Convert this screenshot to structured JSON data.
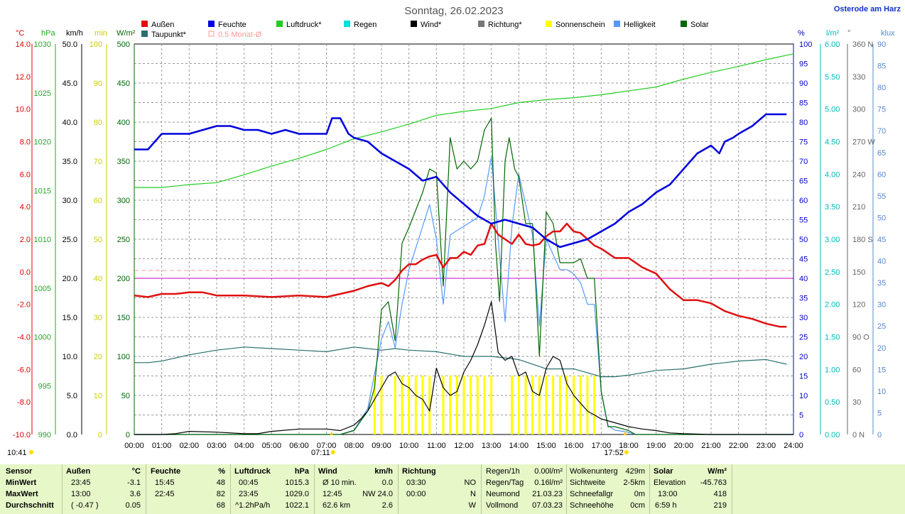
{
  "title": "Sonntag, 26.02.2023",
  "location": "Osterode am Harz",
  "legend": [
    {
      "label": "Außen",
      "color": "#e01010"
    },
    {
      "label": "Feuchte",
      "color": "#0000dd"
    },
    {
      "label": "Luftdruck*",
      "color": "#22cc22"
    },
    {
      "label": "Regen",
      "color": "#00dddd"
    },
    {
      "label": "Wind*",
      "color": "#000000"
    },
    {
      "label": "Richtung*",
      "color": "#777777"
    },
    {
      "label": "Sonnenschein",
      "color": "#ffff00"
    },
    {
      "label": "Helligkeit",
      "color": "#5599ff"
    },
    {
      "label": "Solar",
      "color": "#006600"
    },
    {
      "label": "Taupunkt*",
      "color": "#2a6f6f"
    },
    {
      "label": "0.5 Monat-Ø",
      "color": "#ff9999"
    }
  ],
  "axes": {
    "temp": {
      "unit": "°C",
      "ticks": [
        "14.0",
        "12.0",
        "10.0",
        "8.0",
        "6.0",
        "4.0",
        "2.0",
        "0.0",
        "-2.0",
        "-4.0",
        "-6.0",
        "-8.0",
        "-10.0"
      ],
      "color": "#dd0000"
    },
    "press": {
      "unit": "hPa",
      "ticks": [
        "1030",
        "1025",
        "1020",
        "1015",
        "1010",
        "1005",
        "1000",
        "995",
        "990"
      ],
      "color": "#22aa22"
    },
    "wind": {
      "unit": "km/h",
      "ticks": [
        "50.0",
        "45.0",
        "40.0",
        "35.0",
        "30.0",
        "25.0",
        "20.0",
        "15.0",
        "10.0",
        "5.0",
        "0.0"
      ],
      "color": "#000000"
    },
    "sunmin": {
      "unit": "min",
      "ticks": [
        "100",
        "90",
        "80",
        "70",
        "60",
        "50",
        "40",
        "30",
        "20",
        "10",
        "0"
      ],
      "color": "#cccc00"
    },
    "solar": {
      "unit": "W/m²",
      "ticks": [
        "500",
        "450",
        "400",
        "350",
        "300",
        "250",
        "200",
        "150",
        "100",
        "50",
        "0"
      ],
      "color": "#006600"
    },
    "hum": {
      "unit": "%",
      "ticks": [
        "100",
        "95",
        "90",
        "85",
        "80",
        "75",
        "70",
        "65",
        "60",
        "55",
        "50",
        "45",
        "40",
        "35",
        "30",
        "25",
        "20",
        "15",
        "10",
        "5",
        "0"
      ],
      "color": "#0000cc"
    },
    "rain": {
      "unit": "l/m²",
      "ticks": [
        "6.00",
        "5.50",
        "5.00",
        "4.50",
        "4.00",
        "3.50",
        "3.00",
        "2.50",
        "2.00",
        "1.50",
        "1.00",
        "0.50",
        "0.00"
      ],
      "color": "#00bbbb"
    },
    "dir": {
      "unit": "°",
      "ticks": [
        "360 N",
        "330",
        "300",
        "270 W",
        "240",
        "210",
        "180 S",
        "150",
        "120",
        "90 O",
        "60",
        "30",
        "0 N"
      ],
      "color": "#666666"
    },
    "lux": {
      "unit": "klux",
      "ticks": [
        "90",
        "85",
        "80",
        "75",
        "70",
        "65",
        "60",
        "55",
        "50",
        "45",
        "40",
        "35",
        "30",
        "25",
        "20",
        "15",
        "10",
        "5",
        "0"
      ],
      "color": "#5588cc"
    }
  },
  "x_ticks": [
    "00:00",
    "01:00",
    "02:00",
    "03:00",
    "04:00",
    "05:00",
    "06:00",
    "07:00",
    "08:00",
    "09:00",
    "10:00",
    "11:00",
    "12:00",
    "13:00",
    "14:00",
    "15:00",
    "16:00",
    "17:00",
    "18:00",
    "19:00",
    "20:00",
    "21:00",
    "22:00",
    "23:00",
    "24:00"
  ],
  "markers": {
    "moon": "10:41",
    "sunrise": "07:11",
    "sunset": "17:52"
  },
  "chart_data": {
    "type": "line",
    "x_unit": "hour",
    "xlim": [
      0,
      24
    ],
    "series": [
      {
        "name": "Außen",
        "unit": "°C",
        "ylim": [
          -10,
          15
        ],
        "color": "#e01010",
        "x": [
          0,
          0.5,
          1,
          1.5,
          2,
          2.5,
          3,
          4,
          5,
          6,
          7,
          7.5,
          8,
          8.5,
          9,
          9.25,
          9.5,
          9.75,
          10,
          10.25,
          10.5,
          10.75,
          11,
          11.25,
          11.5,
          11.75,
          12,
          12.25,
          12.5,
          12.75,
          13,
          13.25,
          13.5,
          13.75,
          14,
          14.25,
          14.5,
          14.75,
          15,
          15.25,
          15.5,
          15.75,
          16,
          16.25,
          16.5,
          16.75,
          17,
          17.5,
          18,
          18.5,
          19,
          19.5,
          20,
          20.5,
          21,
          21.5,
          22,
          22.5,
          23,
          23.5,
          23.75
        ],
        "y": [
          -1.1,
          -1.2,
          -1.0,
          -1.0,
          -0.9,
          -0.9,
          -1.1,
          -1.1,
          -1.2,
          -1.1,
          -1.2,
          -1.0,
          -0.8,
          -0.5,
          -0.3,
          -0.5,
          -0.1,
          0.5,
          0.9,
          0.9,
          1.2,
          1.4,
          1.5,
          0.7,
          1.3,
          1.3,
          1.7,
          1.5,
          2.1,
          2.2,
          3.5,
          2.8,
          2.5,
          2.2,
          2.8,
          2.2,
          2.1,
          2.2,
          2.7,
          3.0,
          3.0,
          3.5,
          3.0,
          2.9,
          2.5,
          2.1,
          1.9,
          1.3,
          1.3,
          0.7,
          0.3,
          -0.7,
          -1.4,
          -1.4,
          -1.6,
          -2.1,
          -2.4,
          -2.6,
          -2.9,
          -3.1,
          -3.1
        ]
      },
      {
        "name": "Feuchte",
        "unit": "%",
        "ylim": [
          0,
          100
        ],
        "color": "#0000dd",
        "x": [
          0,
          0.5,
          1,
          1.5,
          2,
          2.5,
          3,
          3.5,
          4,
          4.5,
          5,
          5.5,
          6,
          6.5,
          7,
          7.2,
          7.5,
          7.8,
          8,
          8.5,
          9,
          9.5,
          10,
          10.5,
          11,
          11.5,
          12,
          12.5,
          13,
          13.5,
          14,
          14.5,
          15,
          15.5,
          16,
          16.5,
          17,
          17.5,
          18,
          18.5,
          19,
          19.5,
          20,
          20.5,
          21,
          21.3,
          21.5,
          21.8,
          22,
          22.5,
          23,
          23.5,
          23.75
        ],
        "y": [
          73,
          73,
          77,
          77,
          77,
          78,
          79,
          79,
          78,
          78,
          77,
          78,
          77,
          77,
          77,
          81,
          81,
          77,
          76,
          75,
          72,
          70,
          68,
          65,
          66,
          62,
          59,
          56,
          54,
          55,
          54,
          53,
          50,
          48,
          49,
          50,
          52,
          54,
          57,
          59,
          62,
          64,
          68,
          72,
          74,
          72,
          75,
          76,
          77,
          79,
          82,
          82,
          82
        ]
      },
      {
        "name": "Luftdruck*",
        "unit": "hPa",
        "ylim": [
          990,
          1030
        ],
        "color": "#22cc22",
        "x": [
          0,
          1,
          2,
          3,
          4,
          5,
          6,
          7,
          8,
          9,
          10,
          11,
          12,
          13,
          14,
          15,
          16,
          17,
          18,
          19,
          20,
          21,
          22,
          23,
          24
        ],
        "y": [
          1015.3,
          1015.3,
          1015.6,
          1015.8,
          1016.6,
          1017.5,
          1018.3,
          1019.2,
          1020.3,
          1021.0,
          1021.8,
          1022.7,
          1023.1,
          1023.4,
          1024.0,
          1024.3,
          1024.5,
          1024.8,
          1025.2,
          1025.6,
          1026.4,
          1027.1,
          1027.7,
          1028.4,
          1029.0
        ]
      },
      {
        "name": "Taupunkt*",
        "unit": "°C",
        "ylim": [
          -10,
          15
        ],
        "color": "#2a6f6f",
        "x": [
          0,
          0.5,
          1,
          2,
          3,
          4,
          5,
          6,
          7,
          8,
          9,
          9.5,
          10,
          11,
          12,
          13,
          14,
          15,
          16,
          17,
          17.5,
          18,
          19,
          20,
          21,
          22,
          23,
          23.75
        ],
        "y": [
          -5.4,
          -5.4,
          -5.3,
          -4.9,
          -4.6,
          -4.4,
          -4.5,
          -4.6,
          -4.7,
          -4.4,
          -4.6,
          -4.5,
          -4.6,
          -4.7,
          -5.0,
          -5.0,
          -5.2,
          -5.8,
          -5.8,
          -6.3,
          -6.3,
          -6.2,
          -5.9,
          -5.8,
          -5.5,
          -5.3,
          -5.2,
          -5.5
        ]
      },
      {
        "name": "Wind*",
        "unit": "km/h",
        "ylim": [
          0,
          50
        ],
        "color": "#000000",
        "x": [
          0,
          1,
          1.5,
          2,
          3,
          4,
          4.5,
          5,
          6,
          7,
          7.5,
          8,
          8.25,
          8.5,
          8.75,
          9,
          9.25,
          9.5,
          9.75,
          10,
          10.25,
          10.5,
          10.75,
          11,
          11.25,
          11.5,
          11.75,
          12,
          12.25,
          12.5,
          12.75,
          13,
          13.25,
          13.5,
          13.75,
          14,
          14.25,
          14.5,
          14.75,
          15,
          15.25,
          15.5,
          15.75,
          16,
          16.25,
          16.5,
          16.75,
          17,
          17.5,
          18,
          18.5,
          19,
          19.5,
          20,
          21,
          22,
          23,
          24
        ],
        "y": [
          0,
          0,
          0.1,
          0.4,
          0.3,
          0.1,
          0.1,
          0.4,
          0.7,
          0.7,
          0.5,
          1.2,
          2.0,
          3.0,
          4.5,
          6.0,
          7.5,
          8.0,
          6.5,
          6.0,
          5.0,
          4.5,
          3.0,
          8.5,
          6.0,
          5.0,
          5.5,
          8.0,
          9.5,
          11.5,
          14.0,
          17.0,
          10.5,
          9.5,
          10.0,
          7.5,
          8.0,
          5.5,
          5.0,
          8.5,
          10.0,
          9.5,
          6.5,
          5.0,
          4.0,
          3.0,
          2.5,
          2.0,
          1.5,
          1.0,
          0.7,
          0.5,
          0.2,
          0.1,
          0,
          0,
          0,
          0
        ]
      },
      {
        "name": "Solar",
        "unit": "W/m²",
        "ylim": [
          0,
          500
        ],
        "color": "#006600",
        "x": [
          0,
          7.5,
          8,
          8.5,
          8.75,
          9,
          9.25,
          9.5,
          9.75,
          10,
          10.5,
          10.75,
          11,
          11.25,
          11.5,
          11.75,
          12,
          12.25,
          12.5,
          12.75,
          13,
          13.15,
          13.3,
          13.5,
          13.65,
          13.85,
          14,
          14.25,
          14.5,
          14.75,
          15,
          15.25,
          15.5,
          15.75,
          16,
          16.25,
          16.5,
          16.75,
          17,
          17.25,
          17.5,
          18,
          18.25,
          24
        ],
        "y": [
          0,
          0,
          5,
          30,
          60,
          160,
          170,
          120,
          245,
          265,
          310,
          340,
          335,
          190,
          380,
          340,
          350,
          340,
          350,
          390,
          405,
          245,
          170,
          350,
          380,
          340,
          330,
          270,
          270,
          100,
          285,
          270,
          220,
          220,
          220,
          225,
          200,
          200,
          55,
          10,
          10,
          5,
          0,
          0
        ]
      },
      {
        "name": "Helligkeit",
        "unit": "klux",
        "ylim": [
          0,
          90
        ],
        "color": "#5599ff",
        "x": [
          0,
          7.5,
          8,
          8.5,
          9,
          9.25,
          9.5,
          9.75,
          10,
          10.5,
          10.75,
          11,
          11.25,
          11.5,
          12,
          12.5,
          12.75,
          13,
          13.5,
          13.75,
          14,
          14.5,
          14.75,
          15,
          15.5,
          15.75,
          16,
          16.25,
          16.5,
          16.75,
          17,
          17.25,
          17.5,
          18,
          18.25,
          24
        ],
        "y": [
          0,
          0,
          1,
          6,
          22,
          26,
          20,
          30,
          38,
          48,
          53,
          45,
          30,
          46,
          48,
          50,
          55,
          64,
          26,
          48,
          60,
          46,
          25,
          45,
          38,
          38,
          37,
          35,
          30,
          30,
          10,
          2,
          1,
          0.5,
          0,
          0
        ]
      },
      {
        "name": "Sonnenschein",
        "unit": "min",
        "ylim": [
          0,
          100
        ],
        "color": "#ffff00",
        "x": [
          8.75,
          9.0,
          9.5,
          9.75,
          10.0,
          10.25,
          10.5,
          10.75,
          11.25,
          11.5,
          11.75,
          12.0,
          12.25,
          12.5,
          12.75,
          13.0,
          13.75,
          14.0,
          14.25,
          14.5,
          14.75,
          15.0,
          15.25,
          15.5,
          15.75,
          16.0,
          16.25,
          16.5,
          16.75
        ],
        "y": [
          15,
          15,
          15,
          15,
          15,
          15,
          15,
          15,
          15,
          15,
          15,
          15,
          15,
          15,
          15,
          15,
          15,
          15,
          15,
          15,
          15,
          15,
          15,
          15,
          15,
          15,
          15,
          15,
          15
        ]
      },
      {
        "name": "0.5 Monat-Ø",
        "unit": "°C",
        "ylim": [
          -10,
          15
        ],
        "color": "#ff9999",
        "x": [
          0,
          24
        ],
        "y": [
          0.5,
          0.5
        ]
      }
    ]
  },
  "stats": {
    "headers": {
      "sensor": "Sensor",
      "aussen": "Außen",
      "aussen_unit": "°C",
      "feuchte": "Feuchte",
      "feuchte_unit": "%",
      "luftdruck": "Luftdruck",
      "luftdruck_unit": "hPa",
      "wind": "Wind",
      "wind_unit": "km/h",
      "richtung": "Richtung"
    },
    "min": {
      "label": "MinWert",
      "aussen_time": "23:45",
      "aussen": "-3.1",
      "feuchte_time": "15:45",
      "feuchte": "48",
      "press_time": "00:45",
      "press": "1015.3",
      "wind_label": "Ø 10 min.",
      "wind": "0.0",
      "dir_time": "03:30",
      "dir": "NO"
    },
    "max": {
      "label": "MaxWert",
      "aussen_time": "13:00",
      "aussen": "3.6",
      "feuchte_time": "22:45",
      "feuchte": "82",
      "press_time": "23:45",
      "press": "1029.0",
      "wind_label": "12:45",
      "wind": "NW 24.0",
      "dir_time": "00:00",
      "dir": "N"
    },
    "avg": {
      "label": "Durchschnitt",
      "aussen_time": "( -0.47 )",
      "aussen": "0.05",
      "feuchte_time": "",
      "feuchte": "68",
      "press_time": "^1.2hPa/h",
      "press": "1022.1",
      "wind_label": "62.6 km",
      "wind": "2.6",
      "dir_time": "",
      "dir": "W"
    },
    "rain": {
      "l1": "Regen/1h",
      "v1": "0.00l/m²",
      "l2": "Regen/Tag",
      "v2": "0.16l/m²",
      "l3": "Neumond",
      "v3": "21.03.23",
      "l4": "Vollmond",
      "v4": "07.03.23"
    },
    "cloud": {
      "l1": "Wolkenunterg",
      "v1": "429m",
      "l2": "Sichtweite",
      "v2": "2-5km",
      "l3": "Schneefallgr",
      "v3": "0m",
      "l4": "Schneehöhe",
      "v4": "0cm"
    },
    "solar": {
      "h1": "Solar",
      "h2": "W/m²",
      "l2": "Elevation",
      "v2": "-45.763",
      "l3": "13:00",
      "v3": "418",
      "l4": "6:59 h",
      "v4": "219"
    }
  }
}
